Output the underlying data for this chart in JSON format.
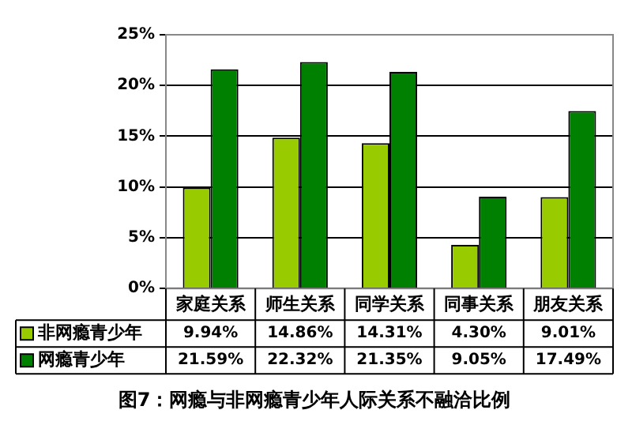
{
  "chart_data": {
    "type": "bar",
    "title": "图7：网瘾与非网瘾青少年人际关系不融洽比例",
    "categories": [
      "家庭关系",
      "师生关系",
      "同学关系",
      "同事关系",
      "朋友关系"
    ],
    "series": [
      {
        "name": "非网瘾青少年",
        "color": "#99cc00",
        "values": [
          9.94,
          14.86,
          14.31,
          4.3,
          9.01
        ],
        "value_labels": [
          "9.94%",
          "14.86%",
          "14.31%",
          "4.30%",
          "9.01%"
        ]
      },
      {
        "name": "网瘾青少年",
        "color": "#008000",
        "values": [
          21.59,
          22.32,
          21.35,
          9.05,
          17.49
        ],
        "value_labels": [
          "21.59%",
          "22.32%",
          "21.35%",
          "9.05%",
          "17.49%"
        ]
      }
    ],
    "ylim": [
      0,
      25
    ],
    "yticks": [
      {
        "value": 0,
        "label": "0%"
      },
      {
        "value": 5,
        "label": "5%"
      },
      {
        "value": 10,
        "label": "10%"
      },
      {
        "value": 15,
        "label": "15%"
      },
      {
        "value": 20,
        "label": "20%"
      },
      {
        "value": 25,
        "label": "25%"
      }
    ],
    "grid": "y",
    "legend": "bottom"
  }
}
